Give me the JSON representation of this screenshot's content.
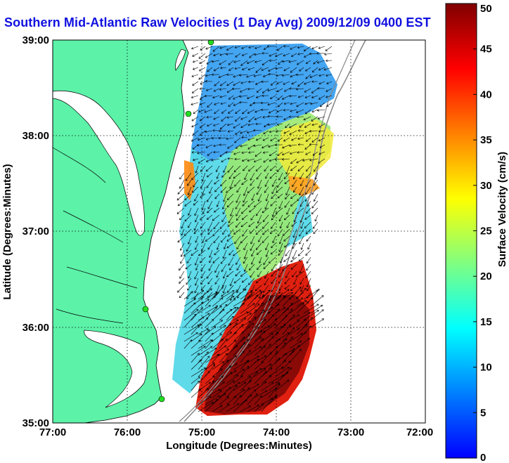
{
  "title": "Southern Mid-Atlantic Raw Velocities (1 Day Avg) 2009/12/09 0400 EST",
  "map": {
    "xlabel": "Longitude (Degrees:Minutes)",
    "ylabel": "Latitude (Degrees:Minutes)",
    "lon_range": [
      -77,
      -72
    ],
    "lat_range": [
      35,
      39
    ],
    "x_ticks": [
      "77:00",
      "76:00",
      "75:00",
      "74:00",
      "73:00",
      "72:00"
    ],
    "y_ticks": [
      "35:00",
      "36:00",
      "37:00",
      "38:00",
      "39:00"
    ],
    "grid": "dotted",
    "land_color": "#5cf2a8",
    "station_color": "#22dd22"
  },
  "colorbar": {
    "label": "Surface Velocity (cm/s)",
    "min": 0,
    "max": 50,
    "ticks": [
      "0",
      "5",
      "10",
      "15",
      "20",
      "25",
      "30",
      "35",
      "40",
      "45",
      "50"
    ],
    "colors": [
      "#0000ff",
      "#0080ff",
      "#00ffff",
      "#80ff80",
      "#ffff00",
      "#ff8000",
      "#ff0000",
      "#800000"
    ]
  }
}
